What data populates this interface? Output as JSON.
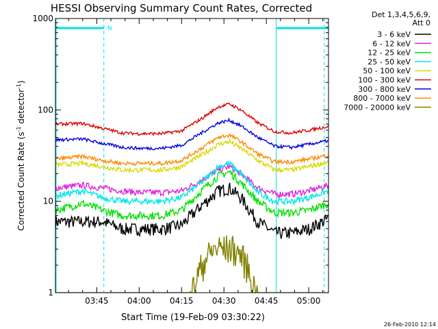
{
  "chart_data": {
    "type": "line",
    "title": "HESSI Observing Summary Count Rates, Corrected",
    "xlabel": "Start Time (19-Feb-09 03:30:22)",
    "ylabel_pre": "Corrected Count Rate (s",
    "ylabel_sup1": "-1",
    "ylabel_mid": " detector",
    "ylabel_sup2": "-1",
    "ylabel_post": ")",
    "x_unit": "minutes since 03:30",
    "xlim": [
      0.37,
      97.0
    ],
    "ylim": [
      1,
      1000
    ],
    "yscale": "log",
    "x_ticks": [
      {
        "x": 15,
        "label": "03:45"
      },
      {
        "x": 30,
        "label": "04:00"
      },
      {
        "x": 45,
        "label": "04:15"
      },
      {
        "x": 60,
        "label": "04:30"
      },
      {
        "x": 75,
        "label": "04:45"
      },
      {
        "x": 90,
        "label": "05:00"
      }
    ],
    "y_ticks": [
      {
        "y": 1,
        "label": "1"
      },
      {
        "y": 10,
        "label": "10"
      },
      {
        "y": 100,
        "label": "100"
      },
      {
        "y": 1000,
        "label": "1000"
      }
    ],
    "legend": {
      "header": [
        "Det 1,3,4,5,6,9,",
        "Att 0"
      ],
      "position": "right"
    },
    "series": [
      {
        "name": "3 - 6 keV",
        "color": "#000000",
        "x": [
          0.37,
          17,
          24,
          30,
          38,
          45,
          52,
          58,
          62,
          66,
          72,
          78,
          84,
          90,
          97
        ],
        "y": [
          6,
          6,
          5,
          5,
          5,
          5.5,
          9,
          13,
          14,
          11,
          6,
          4.5,
          4.5,
          5,
          6.5
        ]
      },
      {
        "name": "6 - 12 keV",
        "color": "#e020e0",
        "x": [
          0.37,
          10,
          24,
          30,
          38,
          45,
          52,
          58,
          62,
          66,
          72,
          78,
          84,
          90,
          97
        ],
        "y": [
          14,
          15,
          13,
          12.5,
          12.5,
          13,
          17,
          22,
          24,
          20,
          14,
          12,
          12,
          13,
          15
        ]
      },
      {
        "name": "12 - 25 keV",
        "color": "#00e000",
        "x": [
          0.37,
          10,
          17,
          24,
          30,
          38,
          45,
          52,
          58,
          62,
          66,
          72,
          78,
          84,
          90,
          97
        ],
        "y": [
          8,
          9.5,
          8,
          7,
          7,
          7,
          8,
          13,
          19,
          21,
          16,
          10,
          7.5,
          7.5,
          8,
          9.5
        ]
      },
      {
        "name": "25 - 50 keV",
        "color": "#00e8e8",
        "x": [
          0.37,
          10,
          17,
          24,
          30,
          38,
          45,
          52,
          58,
          62,
          66,
          72,
          78,
          84,
          90,
          97
        ],
        "y": [
          11.5,
          13,
          11,
          10,
          10,
          10,
          11,
          16,
          24,
          26,
          20,
          12.5,
          10,
          10,
          11,
          13
        ]
      },
      {
        "name": "50 - 100 keV",
        "color": "#d8d800",
        "x": [
          0.37,
          10,
          17,
          24,
          30,
          38,
          45,
          52,
          58,
          62,
          66,
          72,
          78,
          84,
          90,
          97
        ],
        "y": [
          25,
          26,
          24,
          22,
          22,
          22,
          24,
          32,
          42,
          45,
          38,
          28,
          22,
          22,
          24,
          27
        ]
      },
      {
        "name": "100 - 300 keV",
        "color": "#e00000",
        "x": [
          0.37,
          10,
          17,
          24,
          30,
          38,
          45,
          52,
          58,
          62,
          66,
          72,
          78,
          84,
          90,
          97
        ],
        "y": [
          70,
          71,
          63,
          56,
          55,
          55,
          59,
          80,
          108,
          116,
          100,
          72,
          58,
          56,
          60,
          66
        ]
      },
      {
        "name": "300 - 800 keV",
        "color": "#0000e0",
        "x": [
          0.37,
          10,
          17,
          24,
          30,
          38,
          45,
          52,
          58,
          62,
          66,
          72,
          78,
          84,
          90,
          97
        ],
        "y": [
          47,
          48,
          43,
          39,
          38,
          38,
          41,
          56,
          72,
          77,
          67,
          50,
          40,
          39,
          42,
          46
        ]
      },
      {
        "name": "800 - 7000 keV",
        "color": "#ff8800",
        "x": [
          0.37,
          10,
          17,
          24,
          30,
          38,
          45,
          52,
          58,
          62,
          66,
          72,
          78,
          84,
          90,
          97
        ],
        "y": [
          29,
          31,
          28,
          26,
          26,
          26,
          28,
          38,
          50,
          53,
          45,
          33,
          27,
          27,
          29,
          32
        ]
      },
      {
        "name": "7000 - 20000 keV",
        "color": "#808000",
        "x": [
          0.37,
          48,
          50,
          52,
          54,
          56,
          58,
          60,
          62,
          64,
          66,
          68,
          70,
          72,
          97
        ],
        "y": [
          1,
          1,
          1.5,
          2.2,
          2.8,
          3.2,
          3.5,
          3.4,
          3.5,
          3.3,
          2.9,
          2.3,
          1.5,
          1,
          1
        ]
      }
    ],
    "markers": [
      {
        "label": "N",
        "color": "#00e0e0",
        "bar": [
          0.37,
          17.5
        ],
        "dashed_x": [
          17.5,
          95.5
        ],
        "solid_x": [
          0.37,
          78.5
        ],
        "bar2": [
          78.5,
          97
        ]
      }
    ],
    "footer": "26-Feb-2010 12:14"
  }
}
